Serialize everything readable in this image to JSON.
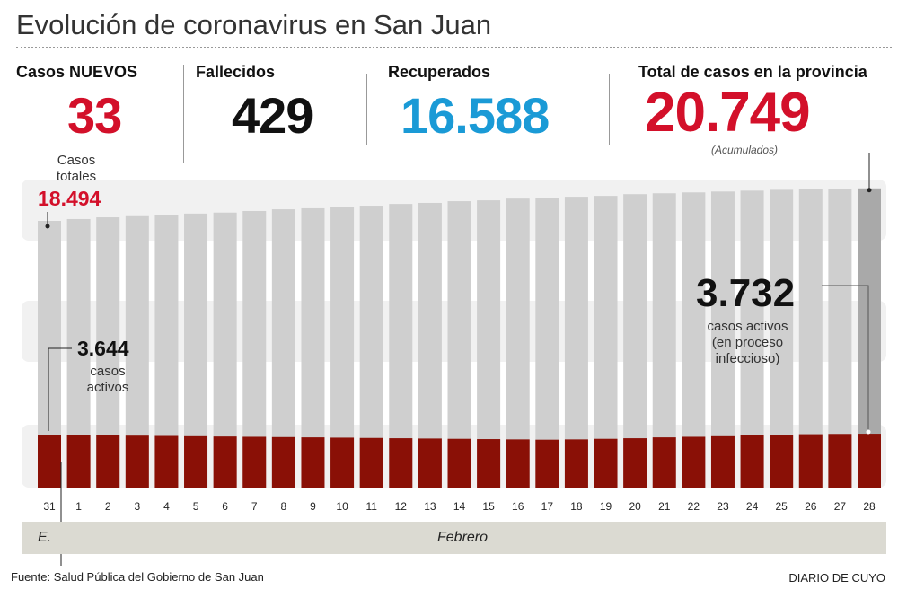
{
  "title": "Evolución de coronavirus en San Juan",
  "stats": {
    "nuevos_label": "Casos NUEVOS",
    "nuevos": "33",
    "fallecidos_label": "Fallecidos",
    "fallecidos": "429",
    "recuperados_label": "Recuperados",
    "recuperados": "16.588",
    "total_label": "Total de casos en la provincia",
    "total": "20.749",
    "total_note": "(Acumulados)"
  },
  "colors": {
    "red": "#d3102a",
    "blue": "#1a9ad6",
    "dark_red": "#8a1006",
    "bar_gray": "#cfcfcf",
    "last_bar": "#a9a9a9"
  },
  "annotations": {
    "totales_l1": "Casos",
    "totales_l2": "totales",
    "totales_val": "18.494",
    "activos_first": "3.644",
    "activos_first_l1": "casos",
    "activos_first_l2": "activos",
    "activos_last": "3.732",
    "activos_last_l1": "casos activos",
    "activos_last_l2": "(en proceso",
    "activos_last_l3": "infeccioso)"
  },
  "month_labels": {
    "enero": "E.",
    "febrero": "Febrero"
  },
  "footer": {
    "source": "Fuente: Salud Pública del Gobierno de San Juan",
    "brand": "DIARIO DE CUYO"
  },
  "chart_data": {
    "type": "bar",
    "categories": [
      "31",
      "1",
      "2",
      "3",
      "4",
      "5",
      "6",
      "7",
      "8",
      "9",
      "10",
      "11",
      "12",
      "13",
      "14",
      "15",
      "16",
      "17",
      "18",
      "19",
      "20",
      "21",
      "22",
      "23",
      "24",
      "25",
      "26",
      "27",
      "28"
    ],
    "series": [
      {
        "name": "Casos totales",
        "values": [
          18494,
          18620,
          18740,
          18820,
          18930,
          19000,
          19070,
          19180,
          19300,
          19370,
          19490,
          19550,
          19670,
          19740,
          19860,
          19920,
          20040,
          20100,
          20170,
          20230,
          20350,
          20410,
          20470,
          20530,
          20590,
          20650,
          20700,
          20720,
          20749
        ]
      },
      {
        "name": "casos activos",
        "values": [
          3644,
          3640,
          3620,
          3600,
          3580,
          3560,
          3540,
          3520,
          3500,
          3480,
          3460,
          3440,
          3420,
          3400,
          3380,
          3360,
          3340,
          3320,
          3340,
          3380,
          3420,
          3480,
          3520,
          3560,
          3620,
          3660,
          3700,
          3720,
          3732
        ]
      }
    ],
    "ylim": [
      0,
      21000
    ],
    "grid": false
  }
}
